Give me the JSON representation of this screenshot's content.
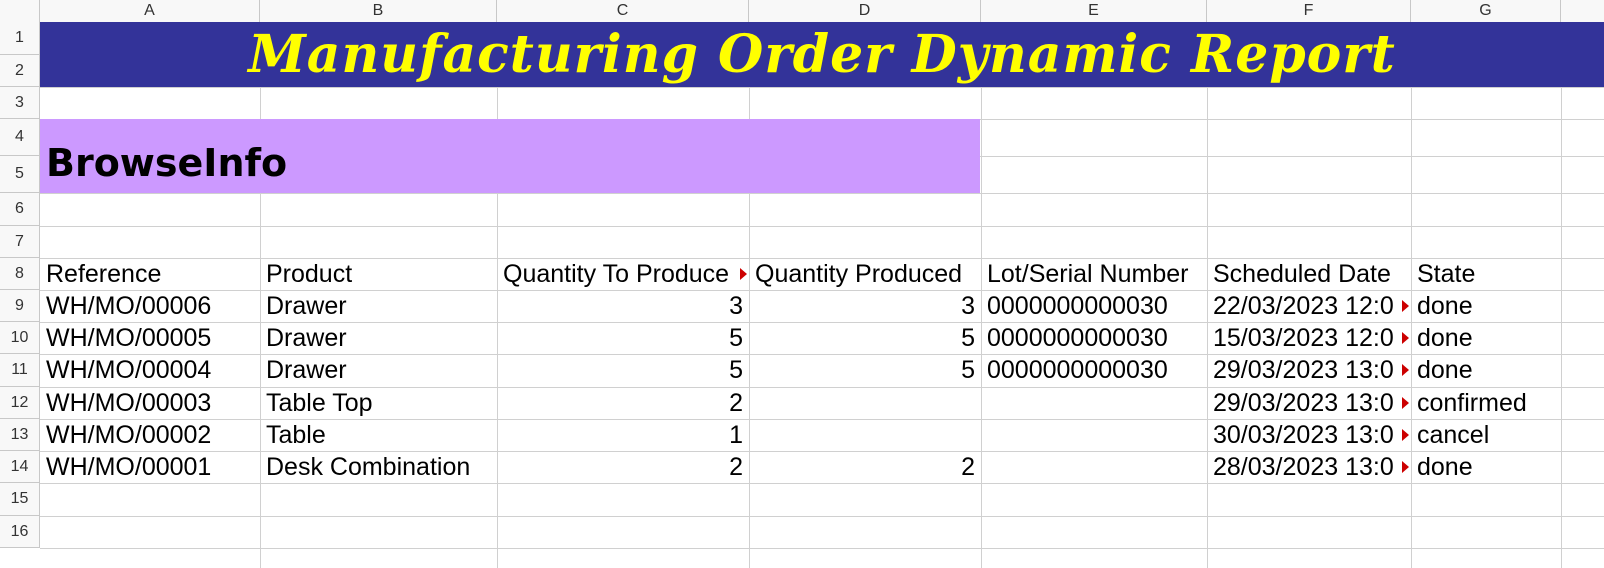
{
  "spreadsheet": {
    "columns": [
      "A",
      "B",
      "C",
      "D",
      "E",
      "F",
      "G"
    ],
    "rows": [
      "1",
      "2",
      "3",
      "4",
      "5",
      "6",
      "7",
      "8",
      "9",
      "10",
      "11",
      "12",
      "13",
      "14",
      "15",
      "16"
    ]
  },
  "report": {
    "title": "Manufacturing Order Dynamic Report",
    "company": "BrowseInfo"
  },
  "table": {
    "headers": [
      "Reference",
      "Product",
      "Quantity To Produce",
      "Quantity Produced",
      "Lot/Serial Number",
      "Scheduled Date",
      "State"
    ],
    "rows": [
      [
        "WH/MO/00006",
        "Drawer",
        "3",
        "3",
        "0000000000030",
        "22/03/2023 12:0",
        "done"
      ],
      [
        "WH/MO/00005",
        "Drawer",
        "5",
        "5",
        "0000000000030",
        "15/03/2023 12:0",
        "done"
      ],
      [
        "WH/MO/00004",
        "Drawer",
        "5",
        "5",
        "0000000000030",
        "29/03/2023 13:0",
        "done"
      ],
      [
        "WH/MO/00003",
        "Table Top",
        "2",
        "",
        "",
        "29/03/2023 13:0",
        "confirmed"
      ],
      [
        "WH/MO/00002",
        "Table",
        "1",
        "",
        "",
        "30/03/2023 13:0",
        "cancel"
      ],
      [
        "WH/MO/00001",
        "Desk Combination",
        "2",
        "2",
        "",
        "28/03/2023 13:0",
        "done"
      ]
    ]
  },
  "colors": {
    "title_bg": "#333399",
    "title_fg": "#ffff00",
    "company_bg": "#cc99ff",
    "overflow_marker": "#cc0000"
  }
}
